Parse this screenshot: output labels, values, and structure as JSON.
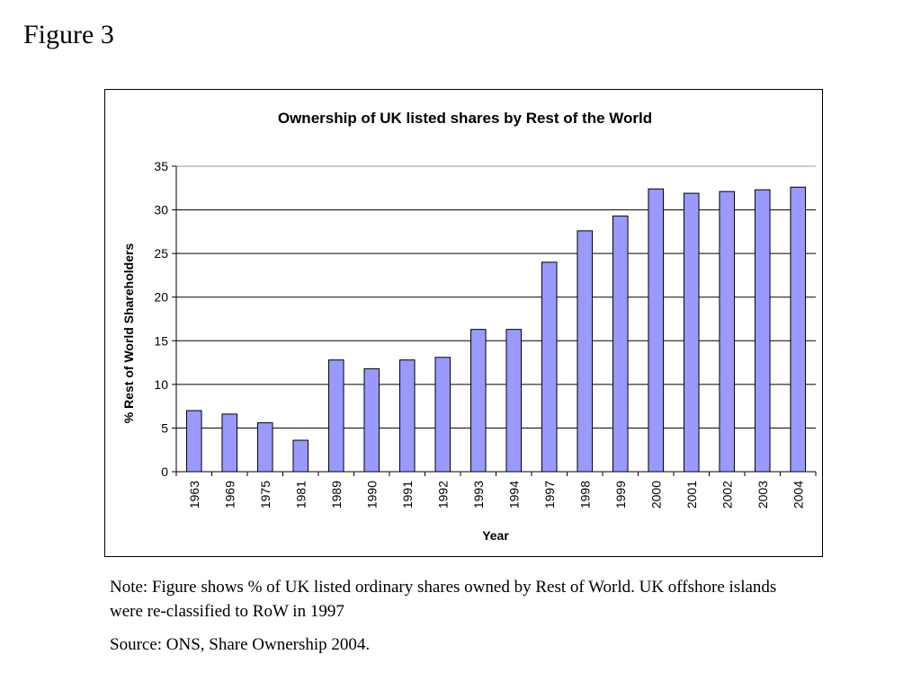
{
  "page": {
    "figure_label": "Figure 3",
    "note": "Note: Figure shows % of UK listed ordinary shares owned by Rest of World. UK offshore islands were re-classified to RoW in 1997",
    "source": "Source: ONS, Share Ownership 2004."
  },
  "chart_data": {
    "type": "bar",
    "title": "Ownership of UK listed shares by Rest of the World",
    "xlabel": "Year",
    "ylabel": "% Rest of World Shareholders",
    "ylim": [
      0,
      35
    ],
    "yticks": [
      0,
      5,
      10,
      15,
      20,
      25,
      30,
      35
    ],
    "grid": true,
    "legend": "none",
    "bar_color": "#9999ff",
    "categories": [
      "1963",
      "1969",
      "1975",
      "1981",
      "1989",
      "1990",
      "1991",
      "1992",
      "1993",
      "1994",
      "1997",
      "1998",
      "1999",
      "2000",
      "2001",
      "2002",
      "2003",
      "2004"
    ],
    "values": [
      7.0,
      6.6,
      5.6,
      3.6,
      12.8,
      11.8,
      12.8,
      13.1,
      16.3,
      16.3,
      24.0,
      27.6,
      29.3,
      32.4,
      31.9,
      32.1,
      32.3,
      32.6
    ]
  }
}
